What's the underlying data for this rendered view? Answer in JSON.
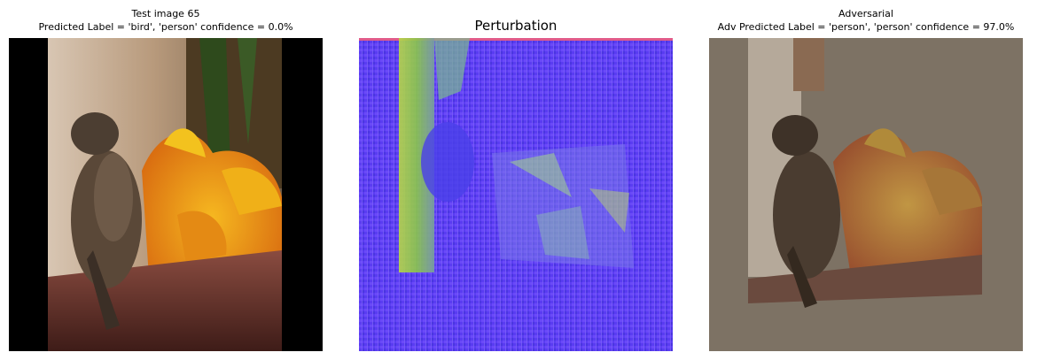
{
  "panels": [
    {
      "title_line1": "Test image 65",
      "title_line2": "Predicted Label = 'bird', 'person' confidence = 0.0%",
      "image": "sparrow-on-flowerbox-photo"
    },
    {
      "title_line1": "Perturbation",
      "image": "adversarial-perturbation-noise"
    },
    {
      "title_line1": "Adversarial",
      "title_line2": "Adv Predicted Label = 'person', 'person' confidence = 97.0%",
      "image": "adversarial-sparrow-photo"
    }
  ]
}
